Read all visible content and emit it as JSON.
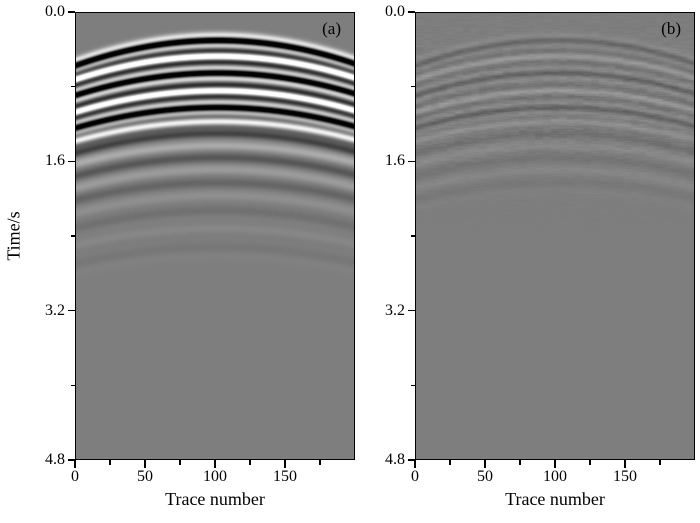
{
  "figure": {
    "ylabel": "Time/s",
    "xlabel": "Trace number",
    "panels": [
      {
        "label": "(a)"
      },
      {
        "label": "(b)"
      }
    ],
    "y_ticks": [
      {
        "label": "0.0",
        "value": 0.0
      },
      {
        "label": "1.6",
        "value": 1.6
      },
      {
        "label": "3.2",
        "value": 3.2
      },
      {
        "label": "4.8",
        "value": 4.8
      }
    ],
    "y_minor_ticks": [
      0.8,
      2.4,
      4.0
    ],
    "x_ticks": [
      {
        "label": "0",
        "value": 0
      },
      {
        "label": "50",
        "value": 50
      },
      {
        "label": "100",
        "value": 100
      },
      {
        "label": "150",
        "value": 150
      }
    ],
    "x_minor_ticks": [
      25,
      75,
      125,
      175
    ]
  },
  "chart_data": {
    "type": "heatmap",
    "description": "Two grayscale variable-density seismic sections: (a) section with strong curved reflection events and multiples near the top, (b) residual section with only faint traces of the same events",
    "x_range": [
      0,
      200
    ],
    "t_range": [
      0.0,
      4.8
    ],
    "apex_trace": 102,
    "background_gray": 126,
    "gain": 230,
    "xlabel": "Trace number",
    "ylabel": "Time/s",
    "panels": [
      {
        "label": "(a)",
        "noise_amp": 0,
        "events": [
          {
            "t0": 0.3,
            "dt": 0.27,
            "amp": 1.0,
            "w": 0.05
          },
          {
            "t0": 0.47,
            "dt": 0.25,
            "amp": -0.9,
            "w": 0.055
          },
          {
            "t0": 0.65,
            "dt": 0.24,
            "amp": 0.95,
            "w": 0.05
          },
          {
            "t0": 0.84,
            "dt": 0.23,
            "amp": -0.85,
            "w": 0.055
          },
          {
            "t0": 1.02,
            "dt": 0.22,
            "amp": 0.9,
            "w": 0.05
          },
          {
            "t0": 1.17,
            "dt": 0.21,
            "amp": -0.5,
            "w": 0.055
          },
          {
            "t0": 1.3,
            "dt": 0.21,
            "amp": 0.22,
            "w": 0.06
          },
          {
            "t0": 1.43,
            "dt": 0.2,
            "amp": -0.16,
            "w": 0.065
          },
          {
            "t0": 1.56,
            "dt": 0.2,
            "amp": 0.13,
            "w": 0.065
          },
          {
            "t0": 1.69,
            "dt": 0.2,
            "amp": -0.1,
            "w": 0.07
          },
          {
            "t0": 1.83,
            "dt": 0.19,
            "amp": 0.08,
            "w": 0.07
          },
          {
            "t0": 1.97,
            "dt": 0.19,
            "amp": -0.06,
            "w": 0.075
          },
          {
            "t0": 2.13,
            "dt": 0.19,
            "amp": 0.05,
            "w": 0.075
          },
          {
            "t0": 2.32,
            "dt": 0.18,
            "amp": -0.04,
            "w": 0.08
          },
          {
            "t0": 2.52,
            "dt": 0.18,
            "amp": 0.03,
            "w": 0.08
          }
        ]
      },
      {
        "label": "(b)",
        "noise_amp": 0.035,
        "events": [
          {
            "t0": 0.3,
            "dt": 0.27,
            "amp": 0.1,
            "w": 0.05
          },
          {
            "t0": 0.47,
            "dt": 0.25,
            "amp": -0.11,
            "w": 0.055
          },
          {
            "t0": 0.65,
            "dt": 0.24,
            "amp": 0.12,
            "w": 0.05
          },
          {
            "t0": 0.84,
            "dt": 0.23,
            "amp": -0.11,
            "w": 0.055
          },
          {
            "t0": 1.02,
            "dt": 0.22,
            "amp": 0.12,
            "w": 0.05
          },
          {
            "t0": 1.17,
            "dt": 0.21,
            "amp": -0.07,
            "w": 0.055
          },
          {
            "t0": 1.3,
            "dt": 0.21,
            "amp": 0.05,
            "w": 0.06
          },
          {
            "t0": 1.43,
            "dt": 0.2,
            "amp": -0.04,
            "w": 0.065
          },
          {
            "t0": 1.56,
            "dt": 0.2,
            "amp": 0.03,
            "w": 0.065
          },
          {
            "t0": 1.69,
            "dt": 0.2,
            "amp": -0.03,
            "w": 0.07
          },
          {
            "t0": 1.83,
            "dt": 0.19,
            "amp": 0.02,
            "w": 0.07
          }
        ]
      }
    ]
  }
}
